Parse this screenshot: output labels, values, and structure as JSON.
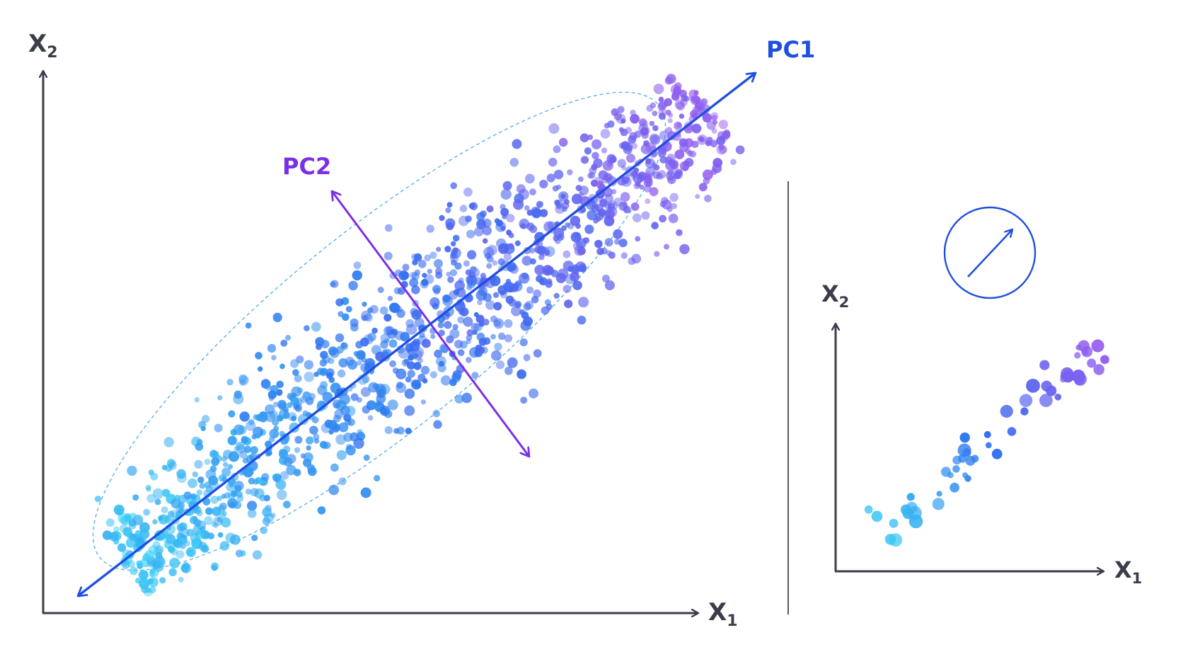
{
  "left_plot": {
    "x_axis_label": "X",
    "x_axis_sub": "1",
    "y_axis_label": "X",
    "y_axis_sub": "2",
    "pc1_label": "PC1",
    "pc2_label": "PC2"
  },
  "right_plot": {
    "x_axis_label": "X",
    "x_axis_sub": "1",
    "y_axis_label": "X",
    "y_axis_sub": "2",
    "icon": "arrow-up-right-in-circle-icon"
  },
  "colors": {
    "axis": "#3a3d4a",
    "pc1": "#1f4fe0",
    "pc2": "#7b2fe6",
    "ellipse": "#4aa8e8",
    "divider": "#555a66",
    "gradient_start": "#3cd2f5",
    "gradient_mid": "#2f6ef0",
    "gradient_end": "#9a5cf0"
  }
}
